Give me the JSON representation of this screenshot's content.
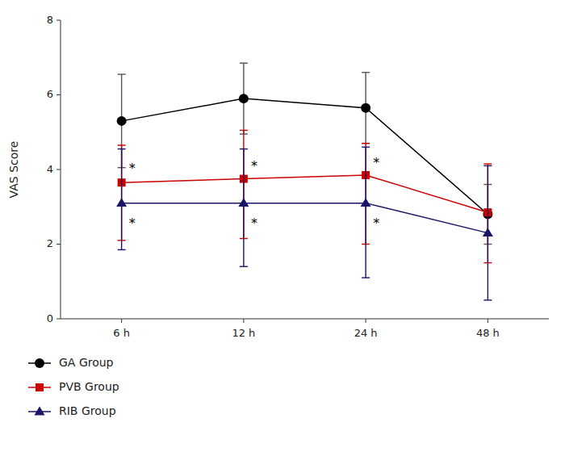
{
  "chart_data": {
    "type": "line",
    "categories": [
      "6 h",
      "12 h",
      "24 h",
      "48 h"
    ],
    "series": [
      {
        "name": "GA Group",
        "color": "#000000",
        "error_color": "#555555",
        "marker": "circle",
        "line_style": "solid",
        "values": [
          5.3,
          5.9,
          5.65,
          2.8
        ],
        "error_lower": [
          1.25,
          0.95,
          0.95,
          0.8
        ],
        "error_upper": [
          1.25,
          0.95,
          0.95,
          0.8
        ]
      },
      {
        "name": "PVB Group",
        "color": "#cc0000",
        "marker": "square",
        "line_style": "solid",
        "values": [
          3.65,
          3.75,
          3.85,
          2.85
        ],
        "error_lower": [
          1.55,
          1.6,
          1.85,
          1.35
        ],
        "error_upper": [
          1.0,
          1.3,
          0.85,
          1.3
        ]
      },
      {
        "name": "RIB Group",
        "color": "#1a1466",
        "marker": "triangle",
        "line_style": "solid",
        "values": [
          3.1,
          3.1,
          3.1,
          2.3
        ],
        "error_lower": [
          1.25,
          1.7,
          2.0,
          1.8
        ],
        "error_upper": [
          1.45,
          1.45,
          1.5,
          1.8
        ]
      }
    ],
    "annotations": [
      {
        "text": "*",
        "category": "6 h",
        "y": 4.05
      },
      {
        "text": "*",
        "category": "12 h",
        "y": 4.1
      },
      {
        "text": "*",
        "category": "24 h",
        "y": 4.2
      },
      {
        "text": "*",
        "category": "6 h",
        "y": 2.58
      },
      {
        "text": "*",
        "category": "12 h",
        "y": 2.58
      },
      {
        "text": "*",
        "category": "24 h",
        "y": 2.58
      }
    ],
    "ylabel": "VAS Score",
    "ylim": [
      0,
      8
    ],
    "yticks": [
      0,
      2,
      4,
      6,
      8
    ],
    "grid": false,
    "legend": "bottom"
  }
}
